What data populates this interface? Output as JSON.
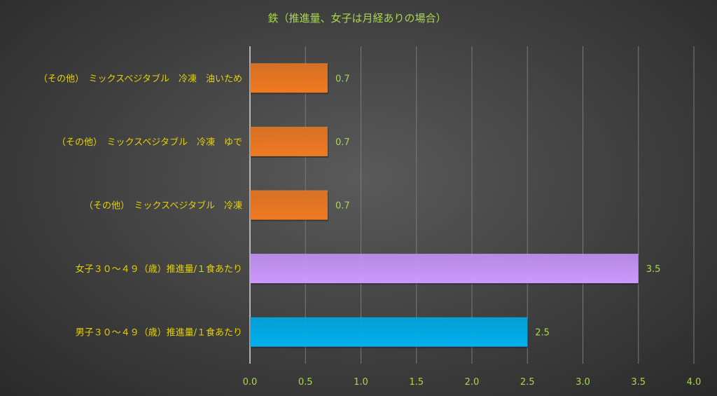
{
  "chart_data": {
    "type": "bar",
    "orientation": "horizontal",
    "title": "鉄（推進量、女子は月経ありの場合）",
    "xlabel": "",
    "ylabel": "",
    "xlim": [
      0,
      4.0
    ],
    "grid": true,
    "tick_values": [
      0,
      0.5,
      1.0,
      1.5,
      2.0,
      2.5,
      3.0,
      3.5,
      4.0
    ],
    "tick_labels": [
      "0.0",
      "0.5",
      "1.0",
      "1.5",
      "2.0",
      "2.5",
      "3.0",
      "3.5",
      "4.0"
    ],
    "categories": [
      "（その他）　ミックスベジタブル　冷凍　油いため",
      "（その他）　ミックスベジタブル　冷凍　ゆで",
      "（その他）　ミックスベジタブル　冷凍",
      "女子３０～４９（歳）推進量/１食あたり",
      "男子３０～４９（歳）推進量/１食あたり"
    ],
    "values": [
      0.7,
      0.7,
      0.7,
      3.5,
      2.5
    ],
    "value_labels": [
      "0.7",
      "0.7",
      "0.7",
      "3.5",
      "2.5"
    ],
    "bar_colors": [
      "#f07a22",
      "#f07a22",
      "#f07a22",
      "#cc99ff",
      "#00b0f0"
    ]
  }
}
